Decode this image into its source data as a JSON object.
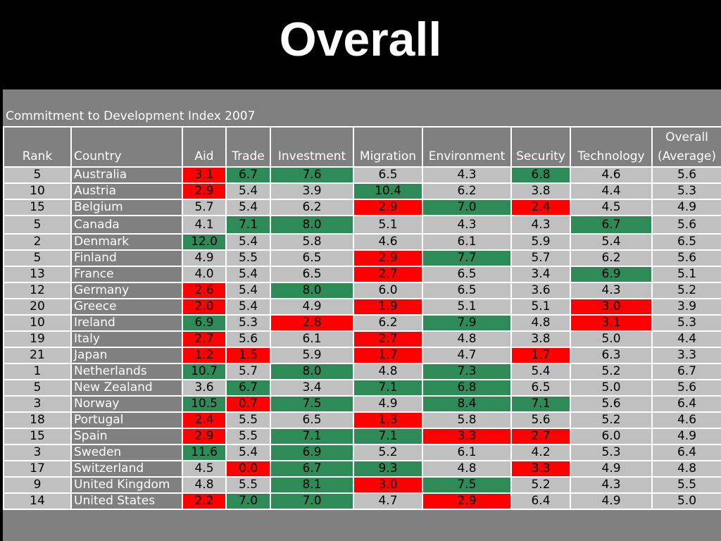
{
  "title": "Overall",
  "caption": "Commitment to Development Index 2007",
  "headers": {
    "rank": "Rank",
    "country": "Country",
    "aid": "Aid",
    "trade": "Trade",
    "investment": "Investment",
    "migration": "Migration",
    "environment": "Environment",
    "security": "Security",
    "technology": "Technology",
    "overall_line1": "Overall",
    "overall_line2": "(Average)"
  },
  "colors": {
    "good": "#2e8b57",
    "bad": "#ff0000",
    "neutral": "#c0c0c0",
    "header": "#808080"
  },
  "rows": [
    {
      "rank": "5",
      "country": "Australia",
      "aid": "3.1",
      "trade": "6.7",
      "investment": "7.6",
      "migration": "6.5",
      "environment": "4.3",
      "security": "6.8",
      "technology": "4.6",
      "overall": "5.6"
    },
    {
      "rank": "10",
      "country": "Austria",
      "aid": "2.9",
      "trade": "5.4",
      "investment": "3.9",
      "migration": "10.4",
      "environment": "6.2",
      "security": "3.8",
      "technology": "4.4",
      "overall": "5.3"
    },
    {
      "rank": "15",
      "country": "Belgium",
      "aid": "5.7",
      "trade": "5.4",
      "investment": "6.2",
      "migration": "2.9",
      "environment": "7.0",
      "security": "2.4",
      "technology": "4.5",
      "overall": "4.9"
    },
    {
      "rank": "5",
      "country": "Canada",
      "aid": "4.1",
      "trade": "7.1",
      "investment": "8.0",
      "migration": "5.1",
      "environment": "4.3",
      "security": "4.3",
      "technology": "6.7",
      "overall": "5.6"
    },
    {
      "rank": "2",
      "country": "Denmark",
      "aid": "12.0",
      "trade": "5.4",
      "investment": "5.8",
      "migration": "4.6",
      "environment": "6.1",
      "security": "5.9",
      "technology": "5.4",
      "overall": "6.5"
    },
    {
      "rank": "5",
      "country": "Finland",
      "aid": "4.9",
      "trade": "5.5",
      "investment": "6.5",
      "migration": "2.9",
      "environment": "7.7",
      "security": "5.7",
      "technology": "6.2",
      "overall": "5.6"
    },
    {
      "rank": "13",
      "country": "France",
      "aid": "4.0",
      "trade": "5.4",
      "investment": "6.5",
      "migration": "2.7",
      "environment": "6.5",
      "security": "3.4",
      "technology": "6.9",
      "overall": "5.1"
    },
    {
      "rank": "12",
      "country": "Germany",
      "aid": "2.6",
      "trade": "5.4",
      "investment": "8.0",
      "migration": "6.0",
      "environment": "6.5",
      "security": "3.6",
      "technology": "4.3",
      "overall": "5.2"
    },
    {
      "rank": "20",
      "country": "Greece",
      "aid": "2.0",
      "trade": "5.4",
      "investment": "4.9",
      "migration": "1.9",
      "environment": "5.1",
      "security": "5.1",
      "technology": "3.0",
      "overall": "3.9"
    },
    {
      "rank": "10",
      "country": "Ireland",
      "aid": "6.9",
      "trade": "5.3",
      "investment": "2.8",
      "migration": "6.2",
      "environment": "7.9",
      "security": "4.8",
      "technology": "3.1",
      "overall": "5.3"
    },
    {
      "rank": "19",
      "country": "Italy",
      "aid": "2.7",
      "trade": "5.6",
      "investment": "6.1",
      "migration": "2.7",
      "environment": "4.8",
      "security": "3.8",
      "technology": "5.0",
      "overall": "4.4"
    },
    {
      "rank": "21",
      "country": "Japan",
      "aid": "1.2",
      "trade": "1.5",
      "investment": "5.9",
      "migration": "1.7",
      "environment": "4.7",
      "security": "1.7",
      "technology": "6.3",
      "overall": "3.3"
    },
    {
      "rank": "1",
      "country": "Netherlands",
      "aid": "10.7",
      "trade": "5.7",
      "investment": "8.0",
      "migration": "4.8",
      "environment": "7.3",
      "security": "5.4",
      "technology": "5.2",
      "overall": "6.7"
    },
    {
      "rank": "5",
      "country": "New Zealand",
      "aid": "3.6",
      "trade": "6.7",
      "investment": "3.4",
      "migration": "7.1",
      "environment": "6.8",
      "security": "6.5",
      "technology": "5.0",
      "overall": "5.6"
    },
    {
      "rank": "3",
      "country": "Norway",
      "aid": "10.5",
      "trade": "0.7",
      "investment": "7.5",
      "migration": "4.9",
      "environment": "8.4",
      "security": "7.1",
      "technology": "5.6",
      "overall": "6.4"
    },
    {
      "rank": "18",
      "country": "Portugal",
      "aid": "2.4",
      "trade": "5.5",
      "investment": "6.5",
      "migration": "1.3",
      "environment": "5.8",
      "security": "5.6",
      "technology": "5.2",
      "overall": "4.6"
    },
    {
      "rank": "15",
      "country": "Spain",
      "aid": "2.9",
      "trade": "5.5",
      "investment": "7.1",
      "migration": "7.1",
      "environment": "3.3",
      "security": "2.7",
      "technology": "6.0",
      "overall": "4.9"
    },
    {
      "rank": "3",
      "country": "Sweden",
      "aid": "11.6",
      "trade": "5.4",
      "investment": "6.9",
      "migration": "5.2",
      "environment": "6.1",
      "security": "4.2",
      "technology": "5.3",
      "overall": "6.4"
    },
    {
      "rank": "17",
      "country": "Switzerland",
      "aid": "4.5",
      "trade": "0.0",
      "investment": "6.7",
      "migration": "9.3",
      "environment": "4.8",
      "security": "3.3",
      "technology": "4.9",
      "overall": "4.8"
    },
    {
      "rank": "9",
      "country": "United Kingdom",
      "aid": "4.8",
      "trade": "5.5",
      "investment": "8.1",
      "migration": "3.0",
      "environment": "7.5",
      "security": "5.2",
      "technology": "4.3",
      "overall": "5.5"
    },
    {
      "rank": "14",
      "country": "United States",
      "aid": "2.2",
      "trade": "7.0",
      "investment": "7.0",
      "migration": "4.7",
      "environment": "2.9",
      "security": "6.4",
      "technology": "4.9",
      "overall": "5.0"
    }
  ],
  "highlights": [
    {
      "aid": "bad",
      "trade": "good",
      "investment": "good",
      "security": "good"
    },
    {
      "aid": "bad",
      "migration": "good"
    },
    {
      "migration": "bad",
      "environment": "good",
      "security": "bad"
    },
    {
      "trade": "good",
      "investment": "good",
      "technology": "good"
    },
    {
      "aid": "good"
    },
    {
      "migration": "bad",
      "environment": "good"
    },
    {
      "migration": "bad",
      "technology": "good"
    },
    {
      "aid": "bad",
      "investment": "good"
    },
    {
      "aid": "bad",
      "migration": "bad",
      "technology": "bad"
    },
    {
      "aid": "good",
      "investment": "bad",
      "environment": "good",
      "technology": "bad"
    },
    {
      "aid": "bad",
      "migration": "bad"
    },
    {
      "aid": "bad",
      "trade": "bad",
      "migration": "bad",
      "security": "bad"
    },
    {
      "aid": "good",
      "investment": "good",
      "environment": "good"
    },
    {
      "trade": "good",
      "migration": "good",
      "environment": "good"
    },
    {
      "aid": "good",
      "trade": "bad",
      "investment": "good",
      "environment": "good",
      "security": "good"
    },
    {
      "aid": "bad",
      "migration": "bad"
    },
    {
      "aid": "bad",
      "investment": "good",
      "migration": "good",
      "environment": "bad",
      "security": "bad"
    },
    {
      "aid": "good",
      "investment": "good"
    },
    {
      "trade": "bad",
      "investment": "good",
      "migration": "good",
      "security": "bad"
    },
    {
      "investment": "good",
      "migration": "bad",
      "environment": "good"
    },
    {
      "aid": "bad",
      "trade": "good",
      "investment": "good",
      "environment": "bad"
    }
  ]
}
